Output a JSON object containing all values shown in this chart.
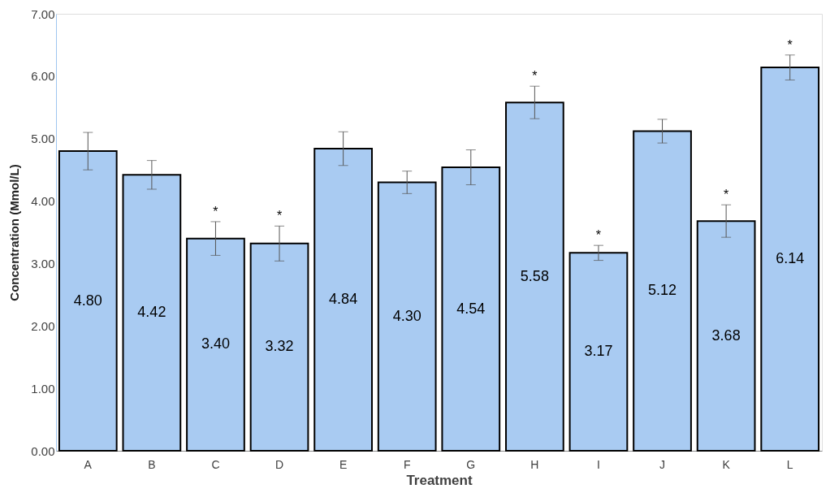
{
  "chart_data": {
    "type": "bar",
    "xlabel": "Treatment",
    "ylabel": "Concentration (Mmol/L)",
    "categories": [
      "A",
      "B",
      "C",
      "D",
      "E",
      "F",
      "G",
      "H",
      "I",
      "J",
      "K",
      "L"
    ],
    "values": [
      4.8,
      4.42,
      3.4,
      3.32,
      4.84,
      4.3,
      4.54,
      5.58,
      3.17,
      5.12,
      3.68,
      6.14
    ],
    "errors": [
      0.3,
      0.23,
      0.27,
      0.28,
      0.27,
      0.18,
      0.28,
      0.26,
      0.12,
      0.19,
      0.26,
      0.2
    ],
    "color": "#a9cbf2",
    "value_labels": [
      "4.80",
      "4.42",
      "3.40",
      "3.32",
      "4.84",
      "4.30",
      "4.54",
      "5.58",
      "3.17",
      "5.12",
      "3.68",
      "6.14"
    ],
    "ylim": [
      0,
      7
    ],
    "yticks": [
      {
        "value": 0,
        "label": "0.00"
      },
      {
        "value": 1,
        "label": "1.00"
      },
      {
        "value": 2,
        "label": "2.00"
      },
      {
        "value": 3,
        "label": "3.00"
      },
      {
        "value": 4,
        "label": "4.00"
      },
      {
        "value": 5,
        "label": "5.00"
      },
      {
        "value": 6,
        "label": "6.00"
      },
      {
        "value": 7,
        "label": "7.00"
      }
    ],
    "grid": false,
    "annotations": [
      {
        "text": "*",
        "x": "C",
        "y": 3.4
      },
      {
        "text": "*",
        "x": "D",
        "y": 3.32
      },
      {
        "text": "*",
        "x": "H",
        "y": 5.58
      },
      {
        "text": "*",
        "x": "I",
        "y": 3.17
      },
      {
        "text": "*",
        "x": "K",
        "y": 3.68
      },
      {
        "text": "*",
        "x": "L",
        "y": 6.14
      }
    ]
  }
}
